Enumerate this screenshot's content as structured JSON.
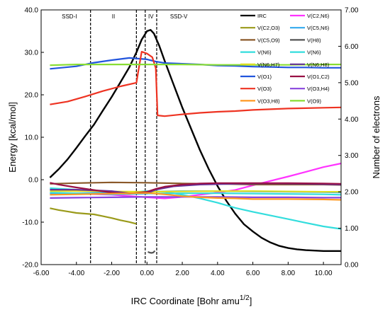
{
  "chart_data": {
    "type": "line",
    "title": "",
    "xlabel": "IRC Coordinate [Bohr amu",
    "xlabel_sup": "1/2",
    "xlabel_end": "]",
    "ylabel": "Energy [kcal/mol]",
    "ylabel_right": "Number of electrons",
    "xlim": [
      -6,
      11
    ],
    "ylim": [
      -20,
      40
    ],
    "ylim_right": [
      0,
      7
    ],
    "x_ticks": [
      "-6.00",
      "-4.00",
      "-2.00",
      "0.00",
      "2.00",
      "4.00",
      "6.00",
      "8.00",
      "10.00"
    ],
    "y_ticks": [
      "40.0",
      "30.0",
      "20.0",
      "10.0",
      "0.0",
      "-10.0",
      "-20.0"
    ],
    "y_ticks_right": [
      "7.00",
      "6.00",
      "5.00",
      "4.00",
      "3.00",
      "2.00",
      "1.00",
      "0.00"
    ],
    "legend_position": "top-right",
    "region_boundaries": [
      -3.2,
      -0.6,
      -0.1,
      0.55
    ],
    "regions": [
      {
        "label": "SSD-I",
        "x": -4.4
      },
      {
        "label": "II",
        "x": -1.9
      },
      {
        "label": "IV",
        "x": 0.22
      },
      {
        "label": "SSD-V",
        "x": 1.8
      }
    ],
    "series": [
      {
        "name": "IRC",
        "color": "#000000",
        "axis": "left",
        "points": [
          [
            -5.5,
            0.5
          ],
          [
            -5,
            2.5
          ],
          [
            -4.5,
            4.8
          ],
          [
            -4,
            7.5
          ],
          [
            -3.5,
            10.3
          ],
          [
            -3,
            13
          ],
          [
            -2.5,
            16.3
          ],
          [
            -2,
            19.5
          ],
          [
            -1.5,
            23
          ],
          [
            -1,
            26.5
          ],
          [
            -0.6,
            30
          ],
          [
            -0.3,
            33
          ],
          [
            0,
            35
          ],
          [
            0.2,
            35.3
          ],
          [
            0.4,
            34.4
          ],
          [
            0.7,
            31.5
          ],
          [
            1,
            28
          ],
          [
            1.5,
            22.5
          ],
          [
            2,
            17
          ],
          [
            2.5,
            12
          ],
          [
            3,
            7
          ],
          [
            3.5,
            2.5
          ],
          [
            4,
            -1.5
          ],
          [
            4.5,
            -5
          ],
          [
            5,
            -8
          ],
          [
            5.5,
            -10.5
          ],
          [
            6,
            -12.2
          ],
          [
            6.5,
            -13.7
          ],
          [
            7,
            -14.8
          ],
          [
            7.5,
            -15.6
          ],
          [
            8,
            -16.1
          ],
          [
            8.5,
            -16.4
          ],
          [
            9,
            -16.6
          ],
          [
            9.5,
            -16.7
          ],
          [
            10,
            -16.8
          ],
          [
            11,
            -16.8
          ]
        ]
      },
      {
        "name": "V(C2,N6)",
        "color": "#ff33ff",
        "axis": "right",
        "points": [
          [
            -5.5,
            1.95
          ],
          [
            -4,
            1.95
          ],
          [
            -2,
            1.92
          ],
          [
            0,
            1.85
          ],
          [
            1,
            1.82
          ],
          [
            2,
            1.86
          ],
          [
            3,
            1.92
          ],
          [
            4,
            1.98
          ],
          [
            5,
            2.05
          ],
          [
            6,
            2.18
          ],
          [
            7,
            2.3
          ],
          [
            8,
            2.42
          ],
          [
            9,
            2.55
          ],
          [
            10,
            2.68
          ],
          [
            11,
            2.78
          ]
        ]
      },
      {
        "name": "V(C2,O3)",
        "color": "#9a9a1a",
        "axis": "right",
        "points": [
          [
            -5.5,
            1.55
          ],
          [
            -5,
            1.5
          ],
          [
            -4.5,
            1.46
          ],
          [
            -4,
            1.42
          ],
          [
            -3.5,
            1.4
          ],
          [
            -3,
            1.38
          ],
          [
            -2.5,
            1.33
          ],
          [
            -2,
            1.28
          ],
          [
            -1.5,
            1.22
          ],
          [
            -1,
            1.17
          ],
          [
            -0.6,
            1.12
          ]
        ]
      },
      {
        "name": "V(C5,N6)",
        "color": "#33aaee",
        "axis": "right",
        "points": [
          [
            -5.5,
            1.95
          ],
          [
            -4,
            1.96
          ],
          [
            -2,
            1.98
          ],
          [
            0,
            2.0
          ],
          [
            2,
            2.02
          ],
          [
            4,
            2.02
          ],
          [
            6,
            2.01
          ],
          [
            8,
            2.0
          ],
          [
            10,
            1.99
          ],
          [
            11,
            1.98
          ]
        ]
      },
      {
        "name": "V(C5,O9)",
        "color": "#8b5a2b",
        "axis": "right",
        "points": [
          [
            -5.5,
            2.22
          ],
          [
            -4,
            2.24
          ],
          [
            -2,
            2.26
          ],
          [
            0,
            2.25
          ],
          [
            2,
            2.23
          ],
          [
            4,
            2.22
          ],
          [
            6,
            2.2
          ],
          [
            8,
            2.2
          ],
          [
            10,
            2.2
          ],
          [
            11,
            2.19
          ]
        ]
      },
      {
        "name": "V(H8)",
        "color": "#555555",
        "axis": "right",
        "points": [
          [
            0.05,
            0.35
          ],
          [
            0.15,
            0.33
          ],
          [
            0.25,
            0.32
          ],
          [
            0.35,
            0.33
          ],
          [
            0.45,
            0.38
          ]
        ]
      },
      {
        "name": "V(N6)",
        "color": "#33dddd",
        "axis": "right",
        "points": [
          [
            -5.5,
            2.1
          ],
          [
            -4,
            2.06
          ],
          [
            -2,
            2.0
          ],
          [
            -1,
            1.98
          ],
          [
            0,
            2.02
          ],
          [
            1,
            2.0
          ],
          [
            2,
            1.92
          ],
          [
            3,
            1.82
          ],
          [
            4,
            1.7
          ],
          [
            5,
            1.56
          ],
          [
            6,
            1.45
          ],
          [
            7,
            1.35
          ],
          [
            8,
            1.25
          ],
          [
            9,
            1.15
          ],
          [
            10,
            1.05
          ],
          [
            11,
            0.98
          ]
        ]
      },
      {
        "name": "V(N6)",
        "color": "#33dddd",
        "axis": "right",
        "points": [
          [
            -5.5,
            1.98
          ],
          [
            -4,
            1.96
          ],
          [
            -2,
            1.93
          ],
          [
            0,
            1.95
          ],
          [
            2,
            1.96
          ],
          [
            4,
            1.96
          ],
          [
            6,
            1.95
          ],
          [
            8,
            1.94
          ],
          [
            10,
            1.93
          ],
          [
            11,
            1.92
          ]
        ]
      },
      {
        "name": "V(N6,H7)",
        "color": "#dddd22",
        "axis": "right",
        "points": [
          [
            -5.5,
            2.02
          ],
          [
            -4,
            2.02
          ],
          [
            -2,
            2.01
          ],
          [
            0,
            2.0
          ],
          [
            2,
            2.01
          ],
          [
            4,
            2.02
          ],
          [
            6,
            2.02
          ],
          [
            8,
            2.01
          ],
          [
            10,
            2.0
          ],
          [
            11,
            2.0
          ]
        ]
      },
      {
        "name": "V(N6,H8)",
        "color": "#663399",
        "axis": "right",
        "points": [
          [
            -5.5,
            2.06
          ],
          [
            -4,
            2.06
          ],
          [
            -2,
            2.02
          ],
          [
            -1,
            1.96
          ],
          [
            0,
            1.96
          ],
          [
            0.5,
            2.06
          ],
          [
            1.5,
            2.15
          ],
          [
            3,
            2.2
          ],
          [
            5,
            2.22
          ],
          [
            7,
            2.23
          ],
          [
            9,
            2.22
          ],
          [
            11,
            2.2
          ]
        ]
      },
      {
        "name": "V(O1)",
        "color": "#2255dd",
        "axis": "right",
        "points": [
          [
            -5.5,
            5.38
          ],
          [
            -4,
            5.45
          ],
          [
            -3,
            5.55
          ],
          [
            -2,
            5.62
          ],
          [
            -1,
            5.68
          ],
          [
            0,
            5.64
          ],
          [
            0.5,
            5.58
          ],
          [
            1,
            5.54
          ],
          [
            2,
            5.52
          ],
          [
            3,
            5.5
          ],
          [
            4,
            5.47
          ],
          [
            5,
            5.46
          ],
          [
            6,
            5.44
          ],
          [
            7,
            5.43
          ],
          [
            8,
            5.42
          ],
          [
            9,
            5.42
          ],
          [
            10,
            5.41
          ],
          [
            11,
            5.41
          ]
        ]
      },
      {
        "name": "V(O1,C2)",
        "color": "#991144",
        "axis": "right",
        "points": [
          [
            -5.5,
            2.25
          ],
          [
            -5,
            2.2
          ],
          [
            -4,
            2.12
          ],
          [
            -3,
            2.05
          ],
          [
            -2,
            1.98
          ],
          [
            -1,
            1.95
          ],
          [
            0,
            2.0
          ],
          [
            0.5,
            2.08
          ],
          [
            1,
            2.14
          ],
          [
            2,
            2.2
          ],
          [
            3,
            2.23
          ],
          [
            4,
            2.24
          ],
          [
            6,
            2.24
          ],
          [
            8,
            2.24
          ],
          [
            10,
            2.23
          ],
          [
            11,
            2.22
          ]
        ]
      },
      {
        "name": "V(O3)",
        "color": "#ee3322",
        "axis": "right",
        "points": [
          [
            -5.5,
            4.4
          ],
          [
            -4.5,
            4.48
          ],
          [
            -3.5,
            4.62
          ],
          [
            -2.5,
            4.77
          ],
          [
            -1.5,
            4.9
          ],
          [
            -0.6,
            5.0
          ],
          [
            -0.5,
            5.3
          ],
          [
            -0.3,
            5.85
          ],
          [
            0,
            5.8
          ],
          [
            0.3,
            5.7
          ],
          [
            0.5,
            5.4
          ],
          [
            0.6,
            4.1
          ],
          [
            1,
            4.08
          ],
          [
            2,
            4.13
          ],
          [
            3,
            4.17
          ],
          [
            4,
            4.2
          ],
          [
            5,
            4.22
          ],
          [
            6,
            4.25
          ],
          [
            7,
            4.27
          ],
          [
            8,
            4.29
          ],
          [
            9,
            4.3
          ],
          [
            10,
            4.31
          ],
          [
            11,
            4.32
          ]
        ]
      },
      {
        "name": "V(O3,H4)",
        "color": "#8844dd",
        "axis": "right",
        "points": [
          [
            -5.5,
            1.83
          ],
          [
            -4,
            1.84
          ],
          [
            -2,
            1.85
          ],
          [
            0,
            1.86
          ],
          [
            2,
            1.86
          ],
          [
            4,
            1.86
          ],
          [
            6,
            1.85
          ],
          [
            8,
            1.85
          ],
          [
            10,
            1.84
          ],
          [
            11,
            1.84
          ]
        ]
      },
      {
        "name": "V(O3,H8)",
        "color": "#ff9922",
        "axis": "right",
        "points": [
          [
            -5.5,
            1.92
          ],
          [
            -4,
            1.93
          ],
          [
            -2,
            1.95
          ],
          [
            0,
            1.97
          ],
          [
            1,
            1.93
          ],
          [
            2,
            1.88
          ],
          [
            3,
            1.85
          ],
          [
            4,
            1.83
          ],
          [
            5,
            1.82
          ],
          [
            6,
            1.8
          ],
          [
            8,
            1.8
          ],
          [
            10,
            1.79
          ],
          [
            11,
            1.78
          ]
        ]
      },
      {
        "name": "V(O9)",
        "color": "#88dd33",
        "axis": "right",
        "points": [
          [
            -5.5,
            5.48
          ],
          [
            -4,
            5.5
          ],
          [
            -2,
            5.5
          ],
          [
            0,
            5.5
          ],
          [
            2,
            5.5
          ],
          [
            4,
            5.49
          ],
          [
            6,
            5.49
          ],
          [
            8,
            5.49
          ],
          [
            10,
            5.5
          ],
          [
            11,
            5.5
          ]
        ]
      }
    ]
  }
}
